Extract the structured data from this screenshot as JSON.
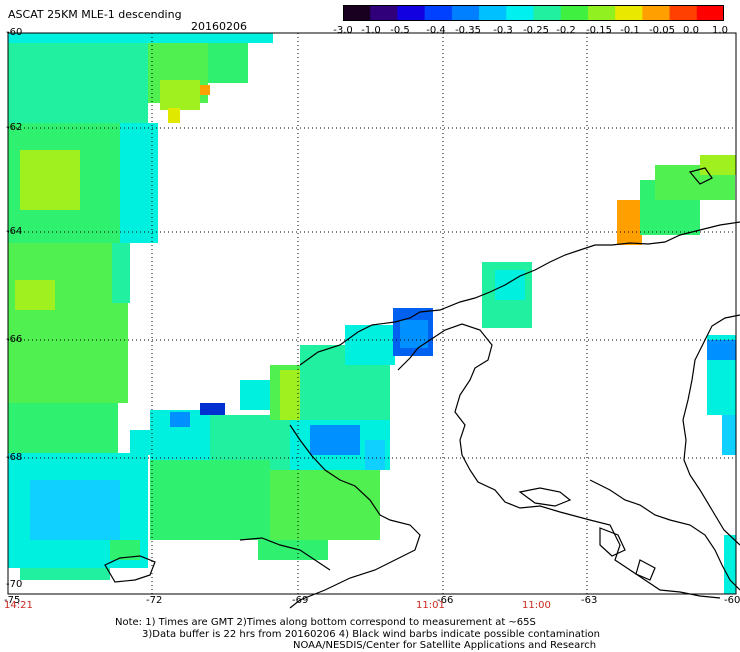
{
  "header": {
    "title": "ASCAT 25KM MLE-1 descending",
    "date": "20160206"
  },
  "colorbar": {
    "tick_labels": [
      "-3.0",
      "-1.0",
      "-0.5",
      "-0.4",
      "-0.35",
      "-0.3",
      "-0.25",
      "-0.2",
      "-0.15",
      "-0.1",
      "-0.05",
      "0.0",
      "1.0"
    ],
    "colors": [
      "#1a0020",
      "#30007a",
      "#1200e0",
      "#0040ff",
      "#0080ff",
      "#00c0ff",
      "#00f0f0",
      "#20f0a0",
      "#40f040",
      "#90f020",
      "#e8e800",
      "#ffa000",
      "#ff4000",
      "#ff0000"
    ]
  },
  "map": {
    "lat_labels": [
      "-60",
      "-62",
      "-64",
      "-66",
      "-68",
      "-70"
    ],
    "lon_labels": [
      "-75",
      "-72",
      "-69",
      "-66",
      "-63",
      "-60"
    ],
    "time_labels": [
      {
        "text": "14:21",
        "lon": "-75"
      },
      {
        "text": "11:01",
        "lon": "-66"
      },
      {
        "text": "11:00",
        "lon": "-64.5"
      }
    ],
    "time_color": "#c8281e",
    "grid_style": "dotted"
  },
  "footer": {
    "note_line1": "Note: 1) Times are GMT 2)Times along bottom correspond to measurement at ~65S",
    "note_line2": "3)Data buffer is 22 hrs from 20160206 4) Black wind barbs indicate possible contamination",
    "credit": "NOAA/NESDIS/Center for Satellite Applications and Research"
  }
}
